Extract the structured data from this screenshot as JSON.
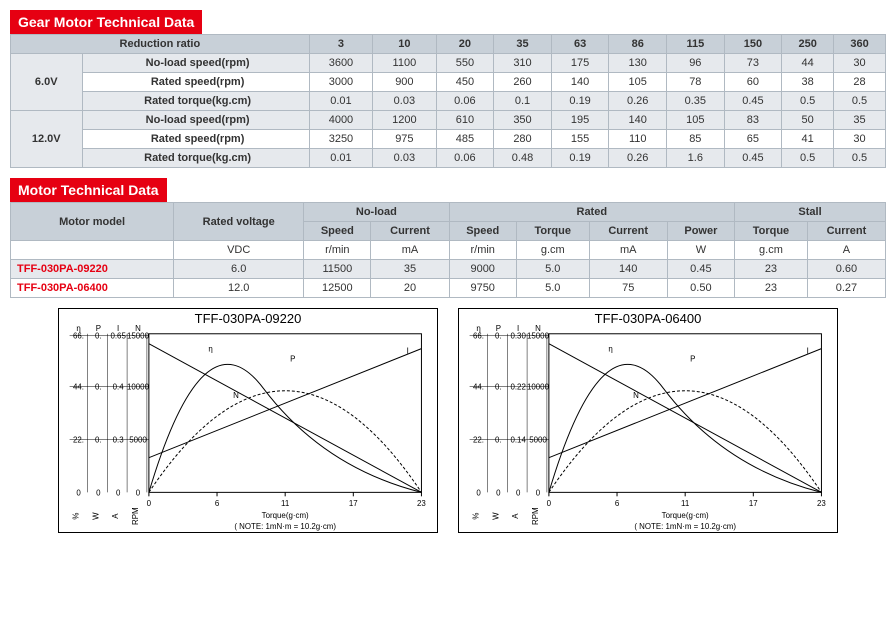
{
  "gear_header": "Gear Motor Technical Data",
  "gear_table": {
    "reduction_label": "Reduction ratio",
    "ratios": [
      "3",
      "10",
      "20",
      "35",
      "63",
      "86",
      "115",
      "150",
      "250",
      "360"
    ],
    "groups": [
      {
        "voltage": "6.0V",
        "rows": [
          {
            "label": "No-load speed(rpm)",
            "vals": [
              "3600",
              "1100",
              "550",
              "310",
              "175",
              "130",
              "96",
              "73",
              "44",
              "30"
            ]
          },
          {
            "label": "Rated speed(rpm)",
            "vals": [
              "3000",
              "900",
              "450",
              "260",
              "140",
              "105",
              "78",
              "60",
              "38",
              "28"
            ]
          },
          {
            "label": "Rated torque(kg.cm)",
            "vals": [
              "0.01",
              "0.03",
              "0.06",
              "0.1",
              "0.19",
              "0.26",
              "0.35",
              "0.45",
              "0.5",
              "0.5"
            ]
          }
        ]
      },
      {
        "voltage": "12.0V",
        "rows": [
          {
            "label": "No-load speed(rpm)",
            "vals": [
              "4000",
              "1200",
              "610",
              "350",
              "195",
              "140",
              "105",
              "83",
              "50",
              "35"
            ]
          },
          {
            "label": "Rated speed(rpm)",
            "vals": [
              "3250",
              "975",
              "485",
              "280",
              "155",
              "110",
              "85",
              "65",
              "41",
              "30"
            ]
          },
          {
            "label": "Rated torque(kg.cm)",
            "vals": [
              "0.01",
              "0.03",
              "0.06",
              "0.48",
              "0.19",
              "0.26",
              "1.6",
              "0.45",
              "0.5",
              "0.5"
            ]
          }
        ]
      }
    ]
  },
  "motor_header": "Motor Technical Data",
  "motor_table": {
    "col_model": "Motor model",
    "col_voltage": "Rated voltage",
    "grp_noload": "No-load",
    "grp_rated": "Rated",
    "grp_stall": "Stall",
    "sub": [
      "Speed",
      "Current",
      "Speed",
      "Torque",
      "Current",
      "Power",
      "Torque",
      "Current"
    ],
    "units": [
      "VDC",
      "r/min",
      "mA",
      "r/min",
      "g.cm",
      "mA",
      "W",
      "g.cm",
      "A"
    ],
    "rows": [
      {
        "model": "TFF-030PA-09220",
        "v": [
          "6.0",
          "11500",
          "35",
          "9000",
          "5.0",
          "140",
          "0.45",
          "23",
          "0.60"
        ]
      },
      {
        "model": "TFF-030PA-06400",
        "v": [
          "12.0",
          "12500",
          "20",
          "9750",
          "5.0",
          "75",
          "0.50",
          "23",
          "0.27"
        ]
      }
    ]
  },
  "charts": {
    "note": "( NOTE: 1mN·m = 10.2g·cm)",
    "xlabel": "Torque(g·cm)",
    "axis_headers": [
      "η",
      "P",
      "I",
      "N"
    ],
    "y_units": [
      "%",
      "W",
      "A",
      "RPM"
    ],
    "c1": {
      "title": "TFF-030PA-09220",
      "xticks": [
        "0",
        "6",
        "11",
        "17",
        "23"
      ],
      "y_eta": [
        "22.",
        "44.",
        "66."
      ],
      "y_p": [
        "0.",
        "0.",
        "0."
      ],
      "y_i": [
        "0.3",
        "0.4",
        "0.65"
      ],
      "y_n": [
        "5000",
        "10000",
        "15000"
      ]
    },
    "c2": {
      "title": "TFF-030PA-06400",
      "xticks": [
        "0",
        "6",
        "11",
        "17",
        "23"
      ],
      "y_eta": [
        "22.",
        "44.",
        "66."
      ],
      "y_p": [
        "0.",
        "0.",
        "0."
      ],
      "y_i": [
        "0.14",
        "0.22",
        "0.30"
      ],
      "y_n": [
        "5000",
        "10000",
        "15000"
      ]
    }
  }
}
